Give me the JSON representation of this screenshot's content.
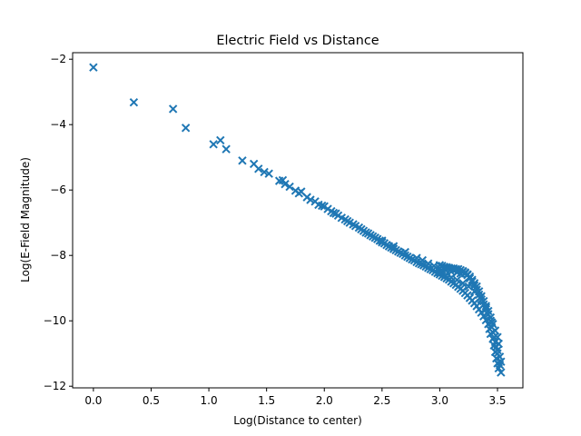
{
  "chart_data": {
    "type": "scatter",
    "title": "Electric Field vs Distance",
    "xlabel": "Log(Distance to center)",
    "ylabel": "Log(E-Field Magnitude)",
    "xlim": [
      -0.18,
      3.72
    ],
    "ylim": [
      -12.05,
      -1.8
    ],
    "xticks": [
      0.0,
      0.5,
      1.0,
      1.5,
      2.0,
      2.5,
      3.0,
      3.5
    ],
    "xtick_labels": [
      "0.0",
      "0.5",
      "1.0",
      "1.5",
      "2.0",
      "2.5",
      "3.0",
      "3.5"
    ],
    "yticks": [
      -12,
      -10,
      -8,
      -6,
      -4,
      -2
    ],
    "ytick_labels": [
      "−12",
      "−10",
      "−8",
      "−6",
      "−4",
      "−2"
    ],
    "grid": false,
    "marker": "x",
    "color": "#1f77b4",
    "series": [
      {
        "points": [
          [
            0.0,
            -2.25
          ],
          [
            0.35,
            -3.32
          ],
          [
            0.69,
            -3.52
          ],
          [
            0.8,
            -4.1
          ],
          [
            1.04,
            -4.6
          ],
          [
            1.1,
            -4.48
          ],
          [
            1.15,
            -4.75
          ],
          [
            1.29,
            -5.1
          ],
          [
            1.39,
            -5.2
          ],
          [
            1.43,
            -5.35
          ],
          [
            1.48,
            -5.45
          ],
          [
            1.52,
            -5.5
          ],
          [
            1.61,
            -5.72
          ],
          [
            1.64,
            -5.7
          ],
          [
            1.66,
            -5.82
          ],
          [
            1.7,
            -5.9
          ],
          [
            1.75,
            -6.02
          ],
          [
            1.78,
            -6.1
          ],
          [
            1.8,
            -6.05
          ],
          [
            1.85,
            -6.22
          ],
          [
            1.88,
            -6.3
          ],
          [
            1.92,
            -6.35
          ],
          [
            1.95,
            -6.45
          ],
          [
            1.98,
            -6.48
          ],
          [
            2.0,
            -6.5
          ],
          [
            2.03,
            -6.58
          ],
          [
            2.06,
            -6.65
          ],
          [
            2.08,
            -6.7
          ],
          [
            2.1,
            -6.72
          ],
          [
            2.12,
            -6.78
          ],
          [
            2.15,
            -6.85
          ],
          [
            2.18,
            -6.9
          ],
          [
            2.2,
            -6.95
          ],
          [
            2.22,
            -7.0
          ],
          [
            2.25,
            -7.05
          ],
          [
            2.27,
            -7.1
          ],
          [
            2.3,
            -7.15
          ],
          [
            2.32,
            -7.2
          ],
          [
            2.34,
            -7.25
          ],
          [
            2.36,
            -7.3
          ],
          [
            2.38,
            -7.33
          ],
          [
            2.4,
            -7.38
          ],
          [
            2.42,
            -7.42
          ],
          [
            2.44,
            -7.46
          ],
          [
            2.46,
            -7.5
          ],
          [
            2.48,
            -7.55
          ],
          [
            2.5,
            -7.6
          ],
          [
            2.52,
            -7.63
          ],
          [
            2.54,
            -7.68
          ],
          [
            2.56,
            -7.72
          ],
          [
            2.58,
            -7.76
          ],
          [
            2.6,
            -7.8
          ],
          [
            2.62,
            -7.84
          ],
          [
            2.64,
            -7.88
          ],
          [
            2.66,
            -7.92
          ],
          [
            2.68,
            -7.95
          ],
          [
            2.7,
            -8.0
          ],
          [
            2.72,
            -8.04
          ],
          [
            2.74,
            -8.08
          ],
          [
            2.76,
            -8.12
          ],
          [
            2.78,
            -8.15
          ],
          [
            2.8,
            -8.2
          ],
          [
            2.82,
            -8.24
          ],
          [
            2.84,
            -8.27
          ],
          [
            2.86,
            -8.3
          ],
          [
            2.88,
            -8.34
          ],
          [
            2.9,
            -8.38
          ],
          [
            2.92,
            -8.42
          ],
          [
            2.94,
            -8.45
          ],
          [
            2.96,
            -8.5
          ],
          [
            2.98,
            -8.54
          ],
          [
            3.0,
            -8.58
          ],
          [
            3.02,
            -8.62
          ],
          [
            3.04,
            -8.66
          ],
          [
            3.06,
            -8.7
          ],
          [
            3.08,
            -8.74
          ],
          [
            3.1,
            -8.8
          ],
          [
            3.12,
            -8.85
          ],
          [
            3.14,
            -8.9
          ],
          [
            3.16,
            -8.96
          ],
          [
            3.18,
            -9.02
          ],
          [
            3.2,
            -9.08
          ],
          [
            3.22,
            -9.15
          ],
          [
            3.24,
            -9.22
          ],
          [
            3.26,
            -9.3
          ],
          [
            3.28,
            -9.38
          ],
          [
            3.3,
            -9.46
          ],
          [
            3.32,
            -9.55
          ],
          [
            3.34,
            -9.65
          ],
          [
            3.36,
            -9.75
          ],
          [
            3.38,
            -9.86
          ],
          [
            3.4,
            -9.98
          ],
          [
            3.42,
            -10.1
          ],
          [
            3.43,
            -10.25
          ],
          [
            3.44,
            -10.4
          ],
          [
            3.46,
            -10.55
          ],
          [
            3.47,
            -10.75
          ],
          [
            3.48,
            -10.95
          ],
          [
            3.49,
            -11.15
          ],
          [
            3.5,
            -11.3
          ],
          [
            3.51,
            -11.45
          ],
          [
            3.53,
            -11.58
          ],
          [
            2.5,
            -7.55
          ],
          [
            2.6,
            -7.72
          ],
          [
            2.7,
            -7.9
          ],
          [
            2.8,
            -8.08
          ],
          [
            2.85,
            -8.15
          ],
          [
            2.9,
            -8.25
          ],
          [
            2.95,
            -8.32
          ],
          [
            3.0,
            -8.4
          ],
          [
            3.05,
            -8.45
          ],
          [
            3.1,
            -8.5
          ],
          [
            3.15,
            -8.52
          ],
          [
            3.18,
            -8.55
          ],
          [
            3.2,
            -8.5
          ],
          [
            3.22,
            -8.55
          ],
          [
            3.24,
            -8.6
          ],
          [
            3.26,
            -8.7
          ],
          [
            3.28,
            -8.8
          ],
          [
            3.3,
            -8.92
          ],
          [
            3.32,
            -9.05
          ],
          [
            3.34,
            -9.2
          ],
          [
            3.36,
            -9.35
          ],
          [
            3.38,
            -9.5
          ],
          [
            3.4,
            -9.65
          ],
          [
            3.42,
            -9.8
          ],
          [
            3.44,
            -10.0
          ],
          [
            3.45,
            -10.2
          ],
          [
            3.46,
            -10.35
          ],
          [
            3.47,
            -10.5
          ],
          [
            3.48,
            -10.65
          ],
          [
            3.49,
            -10.8
          ],
          [
            3.5,
            -10.9
          ],
          [
            3.52,
            -11.1
          ],
          [
            3.53,
            -11.25
          ],
          [
            3.51,
            -10.7
          ],
          [
            3.5,
            -10.5
          ],
          [
            3.48,
            -10.3
          ],
          [
            3.46,
            -10.1
          ],
          [
            3.44,
            -9.9
          ],
          [
            3.42,
            -9.7
          ],
          [
            3.4,
            -9.55
          ],
          [
            3.38,
            -9.4
          ],
          [
            3.36,
            -9.25
          ],
          [
            3.34,
            -9.1
          ],
          [
            3.32,
            -8.95
          ],
          [
            3.3,
            -8.85
          ],
          [
            3.28,
            -8.75
          ],
          [
            3.26,
            -8.65
          ],
          [
            3.24,
            -8.58
          ],
          [
            3.22,
            -8.52
          ],
          [
            3.2,
            -8.48
          ],
          [
            3.18,
            -8.45
          ],
          [
            3.16,
            -8.42
          ],
          [
            3.14,
            -8.42
          ],
          [
            3.12,
            -8.4
          ],
          [
            3.1,
            -8.4
          ],
          [
            3.08,
            -8.38
          ],
          [
            3.06,
            -8.36
          ],
          [
            3.04,
            -8.35
          ],
          [
            3.02,
            -8.32
          ],
          [
            3.0,
            -8.3
          ],
          [
            3.0,
            -8.52
          ],
          [
            3.05,
            -8.6
          ],
          [
            3.1,
            -8.68
          ],
          [
            3.15,
            -8.75
          ],
          [
            3.2,
            -8.85
          ],
          [
            3.25,
            -8.95
          ],
          [
            3.3,
            -9.1
          ],
          [
            3.35,
            -9.3
          ],
          [
            3.4,
            -9.6
          ],
          [
            3.45,
            -10.05
          ],
          [
            3.5,
            -11.0
          ],
          [
            3.52,
            -11.35
          ]
        ]
      }
    ]
  }
}
